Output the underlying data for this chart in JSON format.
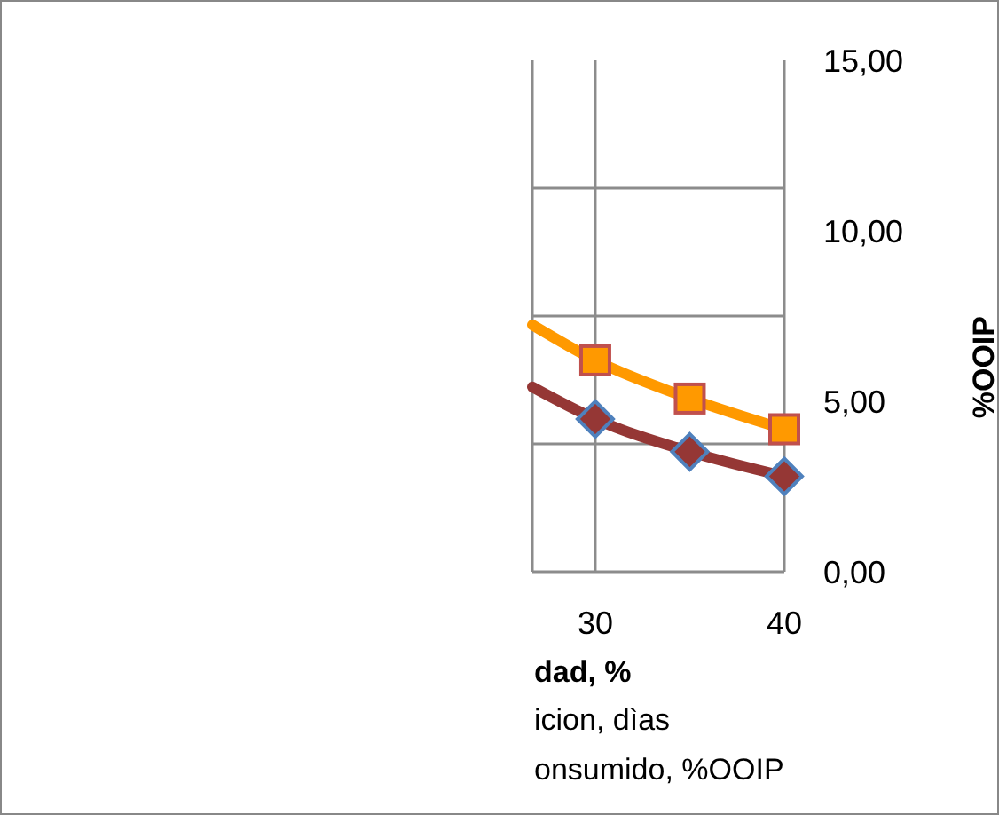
{
  "chart_data": {
    "type": "line",
    "xlabel": "dad, %",
    "y2label": "%OOIP",
    "x": [
      26.67,
      30,
      35,
      40
    ],
    "series": [
      {
        "color": "#ff9900",
        "marker": "square",
        "axis": "y2",
        "values": [
          7.24,
          6.2,
          5.08,
          4.18
        ]
      },
      {
        "color": "#953735",
        "marker": "diamond",
        "axis": "y2",
        "values": [
          5.42,
          4.48,
          3.52,
          2.8
        ]
      }
    ],
    "xlim": [
      26.67,
      40
    ],
    "xticks": [
      30,
      40
    ],
    "y2lim": [
      0,
      15
    ],
    "y2ticks": [
      {
        "value": 0,
        "label": "0,00"
      },
      {
        "value": 5,
        "label": "5,00"
      },
      {
        "value": 10,
        "label": "10,00"
      },
      {
        "value": 15,
        "label": "15,00"
      }
    ],
    "grid": "x",
    "ref_lines": [
      {
        "axis": "y2",
        "value": 3.75,
        "color": "#8c8c8c"
      },
      {
        "axis": "y2",
        "value": 7.5,
        "color": "#8c8c8c"
      },
      {
        "axis": "y2",
        "value": 11.25,
        "color": "#8c8c8c"
      }
    ],
    "annotations": [
      "icion, dìas",
      "onsumido, %OOIP"
    ]
  }
}
